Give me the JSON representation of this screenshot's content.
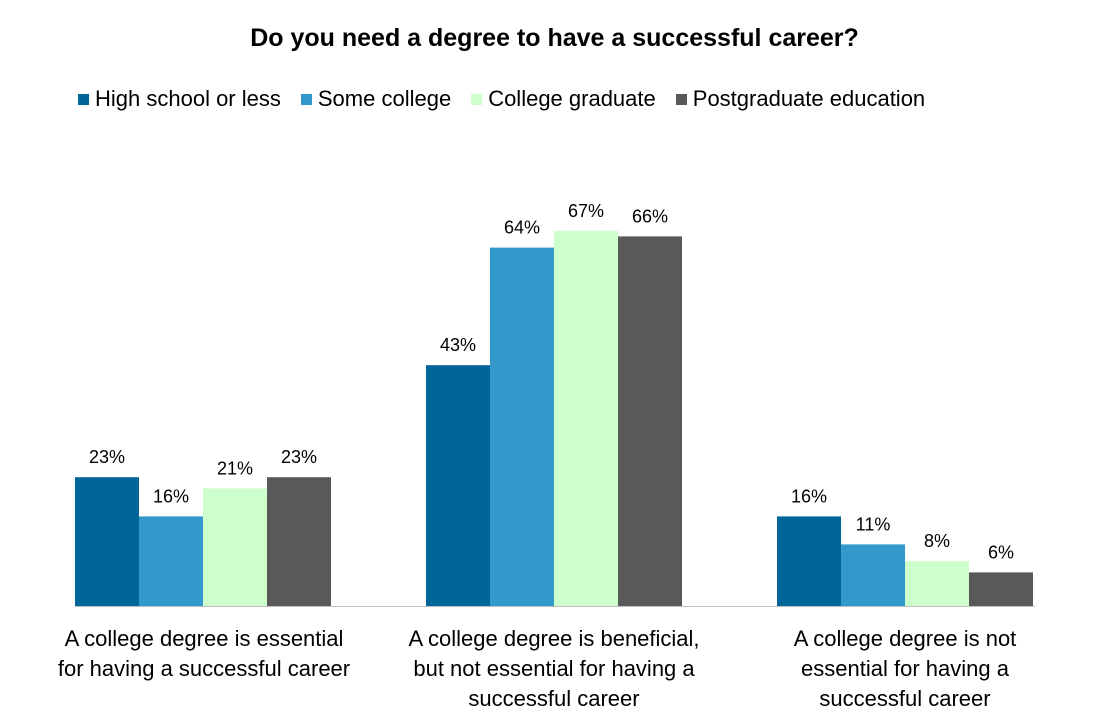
{
  "chart_data": {
    "type": "bar",
    "title": "Do you need a degree to have a successful career?",
    "categories": [
      "A college degree is essential for having a successful career",
      "A college degree is beneficial, but not essential for having a successful career",
      "A college degree is not essential for having a successful career"
    ],
    "category_lines": [
      [
        "A college degree is essential",
        "for having a successful career"
      ],
      [
        "A college degree is beneficial,",
        "but not essential for having a",
        "successful career"
      ],
      [
        "A college degree is not",
        "essential for having a",
        "successful career"
      ]
    ],
    "series": [
      {
        "name": "High school or less",
        "color": "#006699",
        "values": [
          23,
          43,
          16
        ],
        "labels": [
          "23%",
          "43%",
          "16%"
        ]
      },
      {
        "name": "Some college",
        "color": "#3399CC",
        "values": [
          16,
          64,
          11
        ],
        "labels": [
          "16%",
          "64%",
          "11%"
        ]
      },
      {
        "name": "College graduate",
        "color": "#CCFFCC",
        "values": [
          21,
          67,
          8
        ],
        "labels": [
          "21%",
          "67%",
          "8%"
        ]
      },
      {
        "name": "Postgraduate education",
        "color": "#595959",
        "values": [
          23,
          66,
          6
        ],
        "labels": [
          "23%",
          "66%",
          "6%"
        ]
      }
    ],
    "ylim": [
      0,
      70
    ],
    "grid": false,
    "legend_position": "top"
  }
}
